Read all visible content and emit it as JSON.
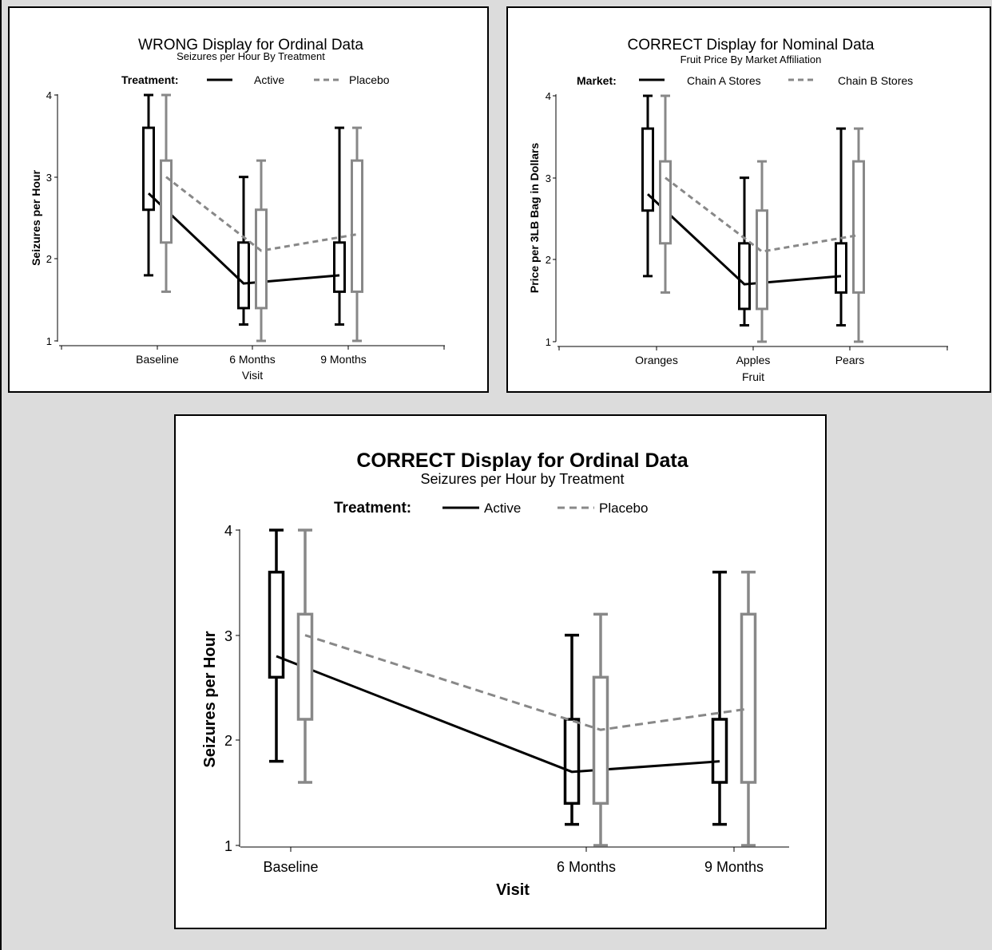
{
  "chart_data": [
    {
      "type": "box",
      "title": "WRONG Display for Ordinal Data",
      "subtitle": "Seizures per Hour By Treatment",
      "legend_title": "Treatment:",
      "xlabel": "Visit",
      "ylabel": "Seizures per Hour",
      "ylim": [
        1,
        4
      ],
      "yticks": [
        "1",
        "2",
        "3",
        "4"
      ],
      "categories": [
        "Baseline",
        "6 Months",
        "9 Months"
      ],
      "series": [
        {
          "name": "Active",
          "color": "#000000",
          "dashed": false,
          "boxes": [
            {
              "whisker_low": 1.8,
              "q1": 2.6,
              "q3": 3.6,
              "whisker_high": 4.0,
              "mean": 2.8
            },
            {
              "whisker_low": 1.2,
              "q1": 1.4,
              "q3": 2.2,
              "whisker_high": 3.0,
              "mean": 1.7
            },
            {
              "whisker_low": 1.2,
              "q1": 1.6,
              "q3": 2.2,
              "whisker_high": 3.6,
              "mean": 1.8
            }
          ]
        },
        {
          "name": "Placebo",
          "color": "#888888",
          "dashed": true,
          "boxes": [
            {
              "whisker_low": 1.6,
              "q1": 2.2,
              "q3": 3.2,
              "whisker_high": 4.0,
              "mean": 3.0
            },
            {
              "whisker_low": 1.0,
              "q1": 1.4,
              "q3": 2.6,
              "whisker_high": 3.2,
              "mean": 2.1
            },
            {
              "whisker_low": 1.0,
              "q1": 1.6,
              "q3": 3.2,
              "whisker_high": 3.6,
              "mean": 2.3
            }
          ]
        }
      ]
    },
    {
      "type": "box",
      "title": "CORRECT Display for Nominal Data",
      "subtitle": "Fruit Price By Market Affiliation",
      "legend_title": "Market:",
      "xlabel": "Fruit",
      "ylabel": "Price per 3LB Bag in Dollars",
      "ylim": [
        1,
        4
      ],
      "yticks": [
        "1",
        "2",
        "3",
        "4"
      ],
      "categories": [
        "Oranges",
        "Apples",
        "Pears"
      ],
      "series": [
        {
          "name": "Chain A Stores",
          "color": "#000000",
          "dashed": false,
          "boxes": [
            {
              "whisker_low": 1.8,
              "q1": 2.6,
              "q3": 3.6,
              "whisker_high": 4.0,
              "mean": 2.8
            },
            {
              "whisker_low": 1.2,
              "q1": 1.4,
              "q3": 2.2,
              "whisker_high": 3.0,
              "mean": 1.7
            },
            {
              "whisker_low": 1.2,
              "q1": 1.6,
              "q3": 2.2,
              "whisker_high": 3.6,
              "mean": 1.8
            }
          ]
        },
        {
          "name": "Chain B Stores",
          "color": "#888888",
          "dashed": true,
          "boxes": [
            {
              "whisker_low": 1.6,
              "q1": 2.2,
              "q3": 3.2,
              "whisker_high": 4.0,
              "mean": 3.0
            },
            {
              "whisker_low": 1.0,
              "q1": 1.4,
              "q3": 2.6,
              "whisker_high": 3.2,
              "mean": 2.1
            },
            {
              "whisker_low": 1.0,
              "q1": 1.6,
              "q3": 3.2,
              "whisker_high": 3.6,
              "mean": 2.3
            }
          ]
        }
      ]
    },
    {
      "type": "box",
      "title": "CORRECT Display for Ordinal Data",
      "subtitle": "Seizures per Hour by Treatment",
      "legend_title": "Treatment:",
      "xlabel": "Visit",
      "ylabel": "Seizures per Hour",
      "ylim": [
        1,
        4
      ],
      "yticks": [
        "1",
        "2",
        "3",
        "4"
      ],
      "categories": [
        "Baseline",
        "6 Months",
        "9 Months"
      ],
      "x_months": [
        0,
        6,
        9
      ],
      "series": [
        {
          "name": "Active",
          "color": "#000000",
          "dashed": false,
          "boxes": [
            {
              "whisker_low": 1.8,
              "q1": 2.6,
              "q3": 3.6,
              "whisker_high": 4.0,
              "mean": 2.8
            },
            {
              "whisker_low": 1.2,
              "q1": 1.4,
              "q3": 2.2,
              "whisker_high": 3.0,
              "mean": 1.7
            },
            {
              "whisker_low": 1.2,
              "q1": 1.6,
              "q3": 2.2,
              "whisker_high": 3.6,
              "mean": 1.8
            }
          ]
        },
        {
          "name": "Placebo",
          "color": "#888888",
          "dashed": true,
          "boxes": [
            {
              "whisker_low": 1.6,
              "q1": 2.2,
              "q3": 3.2,
              "whisker_high": 4.0,
              "mean": 3.0
            },
            {
              "whisker_low": 1.0,
              "q1": 1.4,
              "q3": 2.6,
              "whisker_high": 3.2,
              "mean": 2.1
            },
            {
              "whisker_low": 1.0,
              "q1": 1.6,
              "q3": 3.2,
              "whisker_high": 3.6,
              "mean": 2.3
            }
          ]
        }
      ]
    }
  ]
}
